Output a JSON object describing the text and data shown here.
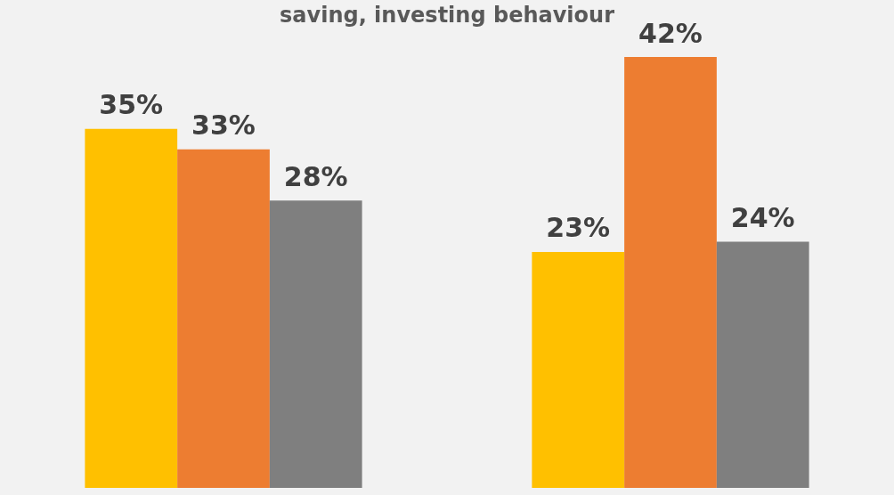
{
  "chart_data": {
    "type": "bar",
    "title": "saving, investing behaviour",
    "categories": [
      null,
      null
    ],
    "series": [
      {
        "color": "#ffc000",
        "values": [
          35,
          23
        ],
        "value_labels": [
          "35%",
          "23%"
        ]
      },
      {
        "color": "#ed7d31",
        "values": [
          33,
          42
        ],
        "value_labels": [
          "33%",
          "42%"
        ]
      },
      {
        "color": "#7f7f7f",
        "values": [
          28,
          24
        ],
        "value_labels": [
          "28%",
          "24%"
        ]
      }
    ]
  }
}
